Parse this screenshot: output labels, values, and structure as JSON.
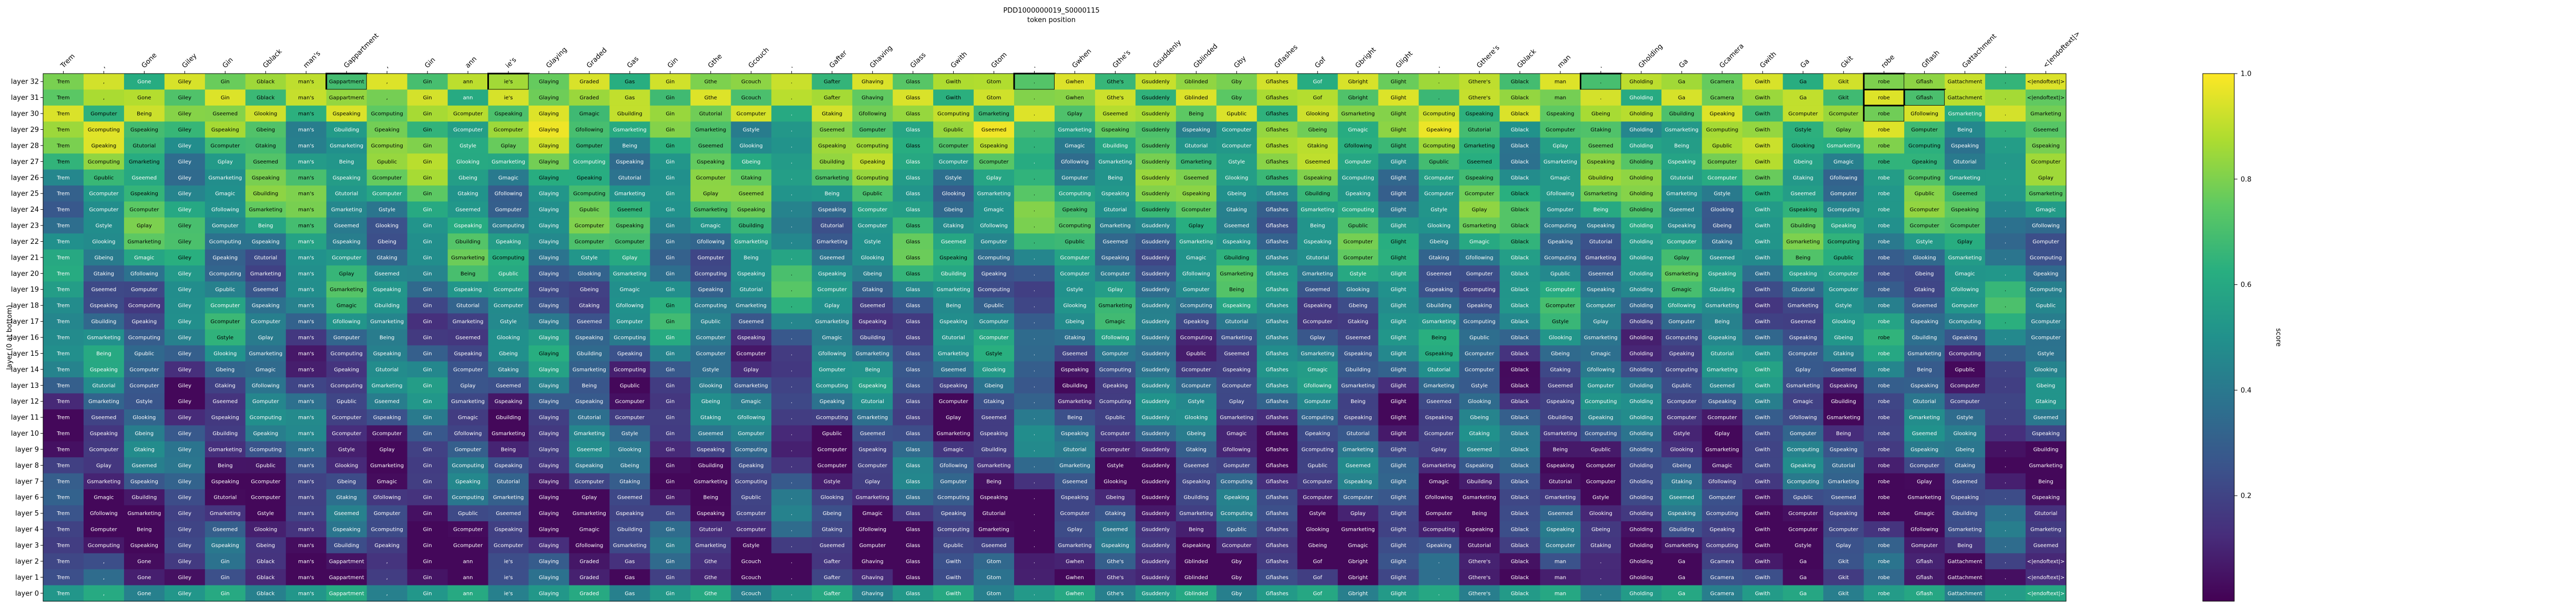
{
  "chart_data": {
    "type": "heatmap",
    "title": "PDD1000000019_S0000115",
    "subtitle": "token position",
    "ylabel": "layer (0 at bottom)",
    "colorbar_label": "score",
    "colorbar_ticks": [
      "0.2",
      "0.4",
      "0.6",
      "0.8",
      "1.0"
    ],
    "colorbar_tick_values": [
      0.2,
      0.4,
      0.6,
      0.8,
      1.0
    ],
    "vmin": 0.0,
    "vmax": 1.0,
    "colormap": "viridis",
    "x_tokens": [
      "Trem",
      ",",
      "Gone",
      "Giley",
      "Gin",
      "Gblack",
      "man's",
      "Gappartment",
      ",",
      "Gin",
      "ann",
      "ie's",
      "Glaying",
      "Graded",
      "Gas",
      "Gin",
      "Gthe",
      "Gcouch",
      ".",
      "Gafter",
      "Ghaving",
      "Glass",
      "Gwith",
      "Gtom",
      ".",
      "Gwhen",
      "Gthe's",
      "Gsuddenly",
      "Gblinded",
      "Gby",
      "Gflashes",
      "Gof",
      "Gbright",
      "Glight",
      ".",
      "Gthere's",
      "Gblack",
      "man",
      ".",
      "Gholding",
      "Ga",
      "Gcamera",
      "Gwith",
      "Ga",
      "Gkit",
      "robe",
      "Gflash",
      "Gattachment",
      ".",
      "<|endoftext|>"
    ],
    "y_layers": [
      "layer 32",
      "layer 31",
      "layer 30",
      "layer 29",
      "layer 28",
      "layer 27",
      "layer 26",
      "layer 25",
      "layer 24",
      "layer 23",
      "layer 22",
      "layer 21",
      "layer 20",
      "layer 19",
      "layer 18",
      "layer 17",
      "layer 16",
      "layer 15",
      "layer 14",
      "layer 13",
      "layer 12",
      "layer 11",
      "layer 10",
      "layer 9",
      "layer 8",
      "layer 7",
      "layer 6",
      "layer 5",
      "layer 4",
      "layer 3",
      "layer 2",
      "layer 1",
      "layer 0"
    ],
    "prefix_words": [
      "Being",
      "Gcomputer",
      "Gsmarketing",
      "Gsmarketing",
      "Gcomputer",
      "Gplay",
      "Gbuilding",
      "Gpublic",
      "Gcomputer",
      "Gspeaking",
      "Gcomputing",
      "Gspeaking",
      "Gseemed",
      "Gpeaking",
      "Gseemed",
      "Gtaking",
      "Gcomputing",
      "Gmarketing",
      "Gbeing",
      "Gomputer",
      "Gtutorial",
      "Glooking",
      "Gfollowing",
      "Gspeaking",
      "Gstyle",
      "Gmagic"
    ],
    "highlighted": [
      [
        0,
        7
      ],
      [
        0,
        11
      ],
      [
        0,
        24
      ],
      [
        0,
        38
      ],
      [
        0,
        45
      ],
      [
        1,
        45
      ],
      [
        2,
        45
      ],
      [
        1,
        46
      ]
    ]
  }
}
